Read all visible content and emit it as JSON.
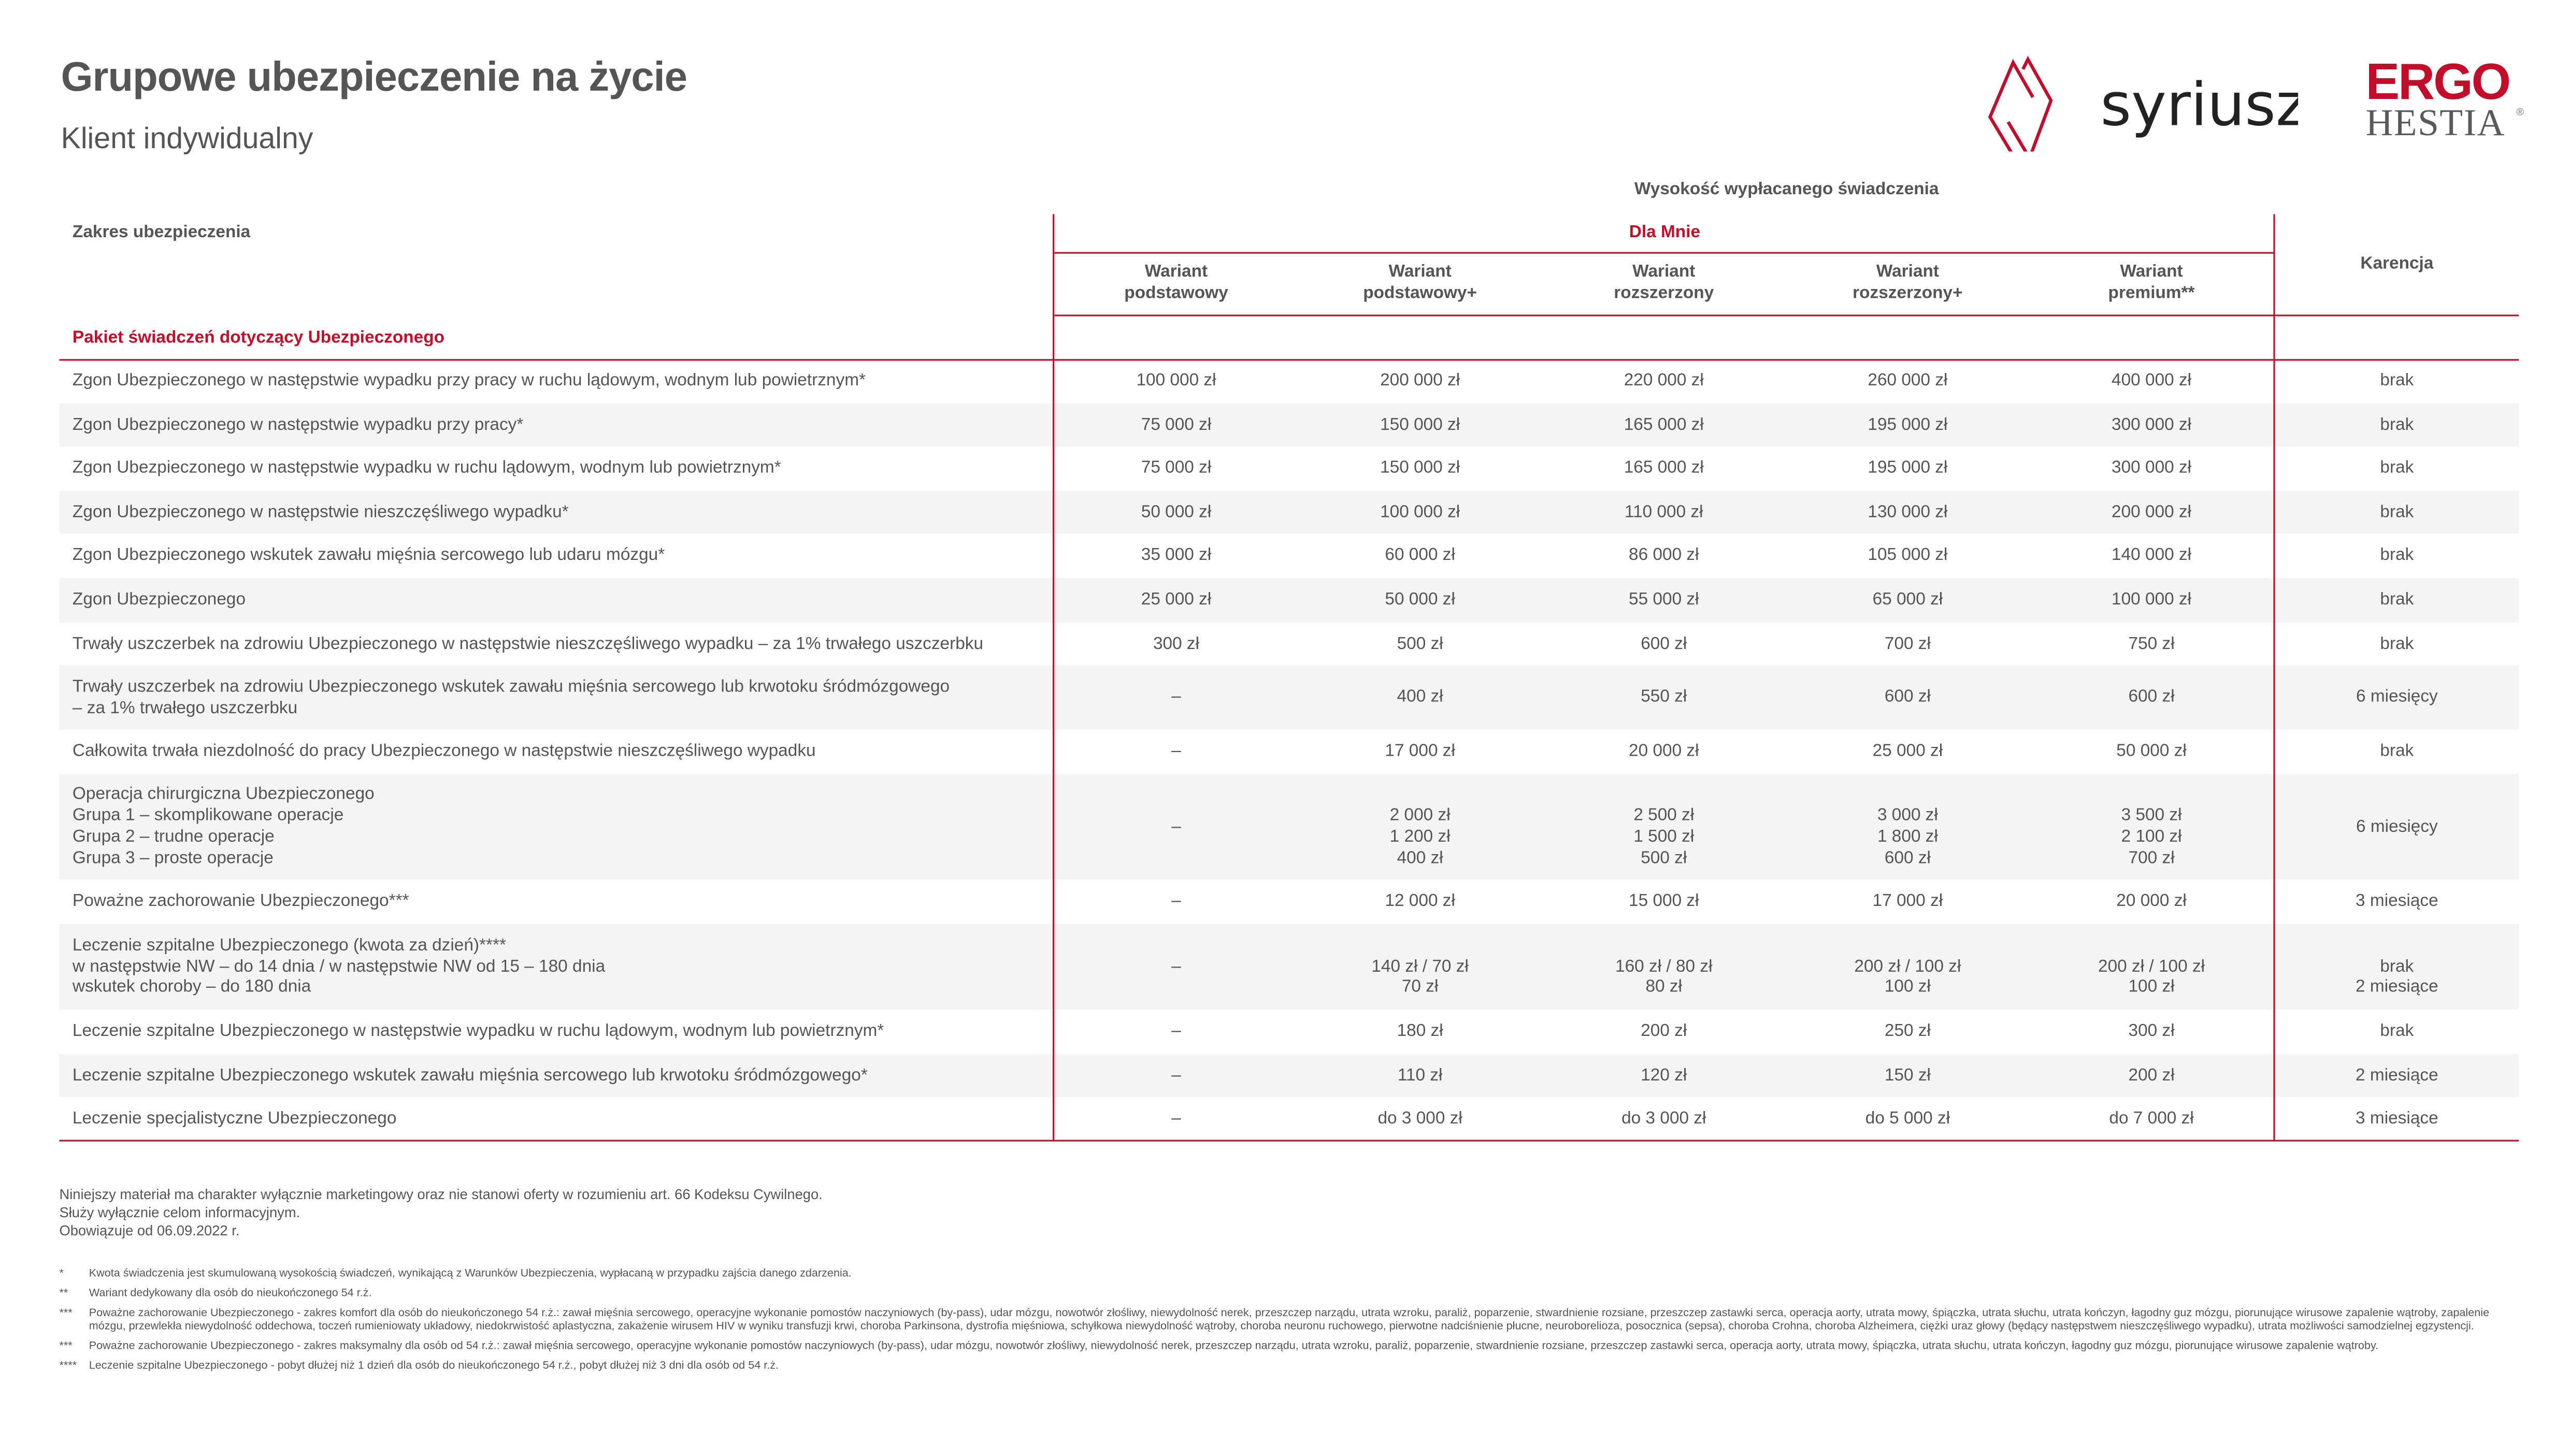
{
  "header": {
    "title": "Grupowe ubezpieczenie na życie",
    "subtitle": "Klient indywidualny",
    "logos": [
      "syriusz",
      "ERGO HESTIA"
    ]
  },
  "colors": {
    "accent": "#c20e2a",
    "text": "#555555",
    "row_alt": "#f4f4f4"
  },
  "table": {
    "super_header": "Wysokość wypłacanego świadczenia",
    "scope_header": "Zakres ubezpieczenia",
    "group_header": "Dla Mnie",
    "waiting_header": "Karencja",
    "variants": [
      "Wariant\npodstawowy",
      "Wariant\npodstawowy+",
      "Wariant\nrozszerzony",
      "Wariant\nrozszerzony+",
      "Wariant\npremium**"
    ],
    "section_title": "Pakiet świadczeń dotyczący Ubezpieczonego",
    "rows": [
      {
        "label": "Zgon Ubezpieczonego w następstwie wypadku przy pracy w ruchu lądowym, wodnym lub powietrznym*",
        "values": [
          "100 000 zł",
          "200 000 zł",
          "220 000 zł",
          "260 000 zł",
          "400 000 zł"
        ],
        "waiting": "brak"
      },
      {
        "label": "Zgon Ubezpieczonego w następstwie wypadku przy pracy*",
        "values": [
          "75 000 zł",
          "150 000 zł",
          "165 000 zł",
          "195 000 zł",
          "300 000 zł"
        ],
        "waiting": "brak"
      },
      {
        "label": "Zgon Ubezpieczonego w następstwie wypadku w ruchu lądowym, wodnym lub powietrznym*",
        "values": [
          "75 000 zł",
          "150 000 zł",
          "165 000 zł",
          "195 000 zł",
          "300 000 zł"
        ],
        "waiting": "brak"
      },
      {
        "label": "Zgon Ubezpieczonego w następstwie nieszczęśliwego wypadku*",
        "values": [
          "50 000 zł",
          "100 000 zł",
          "110 000 zł",
          "130 000 zł",
          "200 000 zł"
        ],
        "waiting": "brak"
      },
      {
        "label": "Zgon Ubezpieczonego wskutek zawału mięśnia sercowego lub udaru mózgu*",
        "values": [
          "35 000 zł",
          "60 000 zł",
          "86 000 zł",
          "105 000 zł",
          "140 000 zł"
        ],
        "waiting": "brak"
      },
      {
        "label": "Zgon Ubezpieczonego",
        "values": [
          "25 000 zł",
          "50 000 zł",
          "55 000 zł",
          "65 000 zł",
          "100 000 zł"
        ],
        "waiting": "brak"
      },
      {
        "label": "Trwały uszczerbek na zdrowiu Ubezpieczonego w następstwie nieszczęśliwego wypadku – za 1% trwałego uszczerbku",
        "values": [
          "300 zł",
          "500 zł",
          "600 zł",
          "700 zł",
          "750 zł"
        ],
        "waiting": "brak"
      },
      {
        "label": "Trwały uszczerbek na zdrowiu Ubezpieczonego wskutek zawału mięśnia sercowego lub krwotoku śródmózgowego\n– za 1% trwałego uszczerbku",
        "values": [
          "–",
          "400 zł",
          "550 zł",
          "600 zł",
          "600 zł"
        ],
        "waiting": "6 miesięcy"
      },
      {
        "label": "Całkowita trwała niezdolność do pracy Ubezpieczonego w następstwie nieszczęśliwego wypadku",
        "values": [
          "–",
          "17 000 zł",
          "20 000 zł",
          "25 000 zł",
          "50 000 zł"
        ],
        "waiting": "brak"
      },
      {
        "label": "Operacja chirurgiczna Ubezpieczonego\nGrupa 1 – skomplikowane operacje\nGrupa 2 – trudne operacje\nGrupa 3 – proste operacje",
        "values": [
          "–",
          "\n2 000 zł\n1 200 zł\n400 zł",
          "\n2 500 zł\n1 500 zł\n500 zł",
          "\n3 000 zł\n1 800 zł\n600 zł",
          "\n3 500 zł\n2 100 zł\n700 zł"
        ],
        "waiting": "6 miesięcy"
      },
      {
        "label": "Poważne zachorowanie Ubezpieczonego***",
        "values": [
          "–",
          "12 000 zł",
          "15 000 zł",
          "17 000 zł",
          "20 000 zł"
        ],
        "waiting": "3 miesiące"
      },
      {
        "label": "Leczenie szpitalne Ubezpieczonego (kwota za dzień)****\nw następstwie NW – do 14 dnia / w następstwie NW od 15 – 180 dnia\nwskutek choroby – do 180 dnia",
        "values": [
          "–",
          "\n140 zł / 70 zł\n70 zł",
          "\n160 zł / 80 zł\n80 zł",
          "\n200 zł / 100 zł\n100 zł",
          "\n200 zł / 100 zł\n100 zł"
        ],
        "waiting": "\nbrak\n2 miesiące"
      },
      {
        "label": "Leczenie szpitalne Ubezpieczonego w następstwie wypadku w ruchu lądowym, wodnym lub powietrznym*",
        "values": [
          "–",
          "180 zł",
          "200 zł",
          "250 zł",
          "300 zł"
        ],
        "waiting": "brak"
      },
      {
        "label": "Leczenie szpitalne Ubezpieczonego wskutek zawału mięśnia sercowego lub krwotoku śródmózgowego*",
        "values": [
          "–",
          "110 zł",
          "120 zł",
          "150 zł",
          "200 zł"
        ],
        "waiting": "2 miesiące"
      },
      {
        "label": "Leczenie specjalistyczne Ubezpieczonego",
        "values": [
          "–",
          "do 3 000 zł",
          "do 3 000 zł",
          "do 5 000 zł",
          "do 7 000 zł"
        ],
        "waiting": "3 miesiące"
      }
    ]
  },
  "disclaimer": "Niniejszy materiał ma charakter wyłącznie marketingowy oraz nie stanowi oferty w rozumieniu art. 66 Kodeksu Cywilnego.\nSłuży wyłącznie celom informacyjnym.\nObowiązuje od 06.09.2022 r.",
  "footnotes": [
    {
      "mark": "*",
      "text": "Kwota świadczenia jest skumulowaną wysokością świadczeń, wynikającą z Warunków Ubezpieczenia, wypłacaną w przypadku zajścia danego zdarzenia."
    },
    {
      "mark": "**",
      "text": "Wariant dedykowany dla osób do nieukończonego 54 r.ż."
    },
    {
      "mark": "***",
      "text": "Poważne zachorowanie Ubezpieczonego - zakres komfort dla osób do nieukończonego 54 r.ż.: zawał mięśnia sercowego, operacyjne wykonanie pomostów naczyniowych (by-pass), udar mózgu, nowotwór złośliwy, niewydolność nerek, przeszczep narządu, utrata wzroku, paraliż, poparzenie, stwardnienie rozsiane, przeszczep zastawki serca, operacja aorty, utrata mowy, śpiączka, utrata słuchu, utrata kończyn, łagodny guz mózgu, piorunujące wirusowe zapalenie wątroby, zapalenie mózgu, przewlekła niewydolność oddechowa, toczeń rumieniowaty układowy, niedokrwistość aplastyczna, zakażenie wirusem HIV w wyniku transfuzji krwi, choroba Parkinsona, dystrofia mięśniowa, schyłkowa niewydolność wątroby, choroba neuronu ruchowego, pierwotne nadciśnienie płucne, neuroborelioza, posocznica (sepsa), choroba Crohna, choroba Alzheimera, ciężki uraz głowy (będący następstwem nieszczęśliwego wypadku), utrata możliwości samodzielnej egzystencji."
    },
    {
      "mark": "***",
      "text": "Poważne zachorowanie Ubezpieczonego - zakres maksymalny dla osób od 54 r.ż.: zawał mięśnia sercowego, operacyjne wykonanie pomostów naczyniowych (by-pass), udar mózgu, nowotwór złośliwy, niewydolność nerek, przeszczep narządu, utrata wzroku, paraliż, poparzenie, stwardnienie rozsiane, przeszczep zastawki serca, operacja aorty, utrata mowy, śpiączka, utrata słuchu, utrata kończyn, łagodny guz mózgu, piorunujące wirusowe zapalenie wątroby."
    },
    {
      "mark": "****",
      "text": "Leczenie szpitalne Ubezpieczonego - pobyt dłużej niż 1 dzień dla osób do nieukończonego 54 r.ż., pobyt dłużej niż 3 dni dla osób od 54 r.ż."
    }
  ]
}
